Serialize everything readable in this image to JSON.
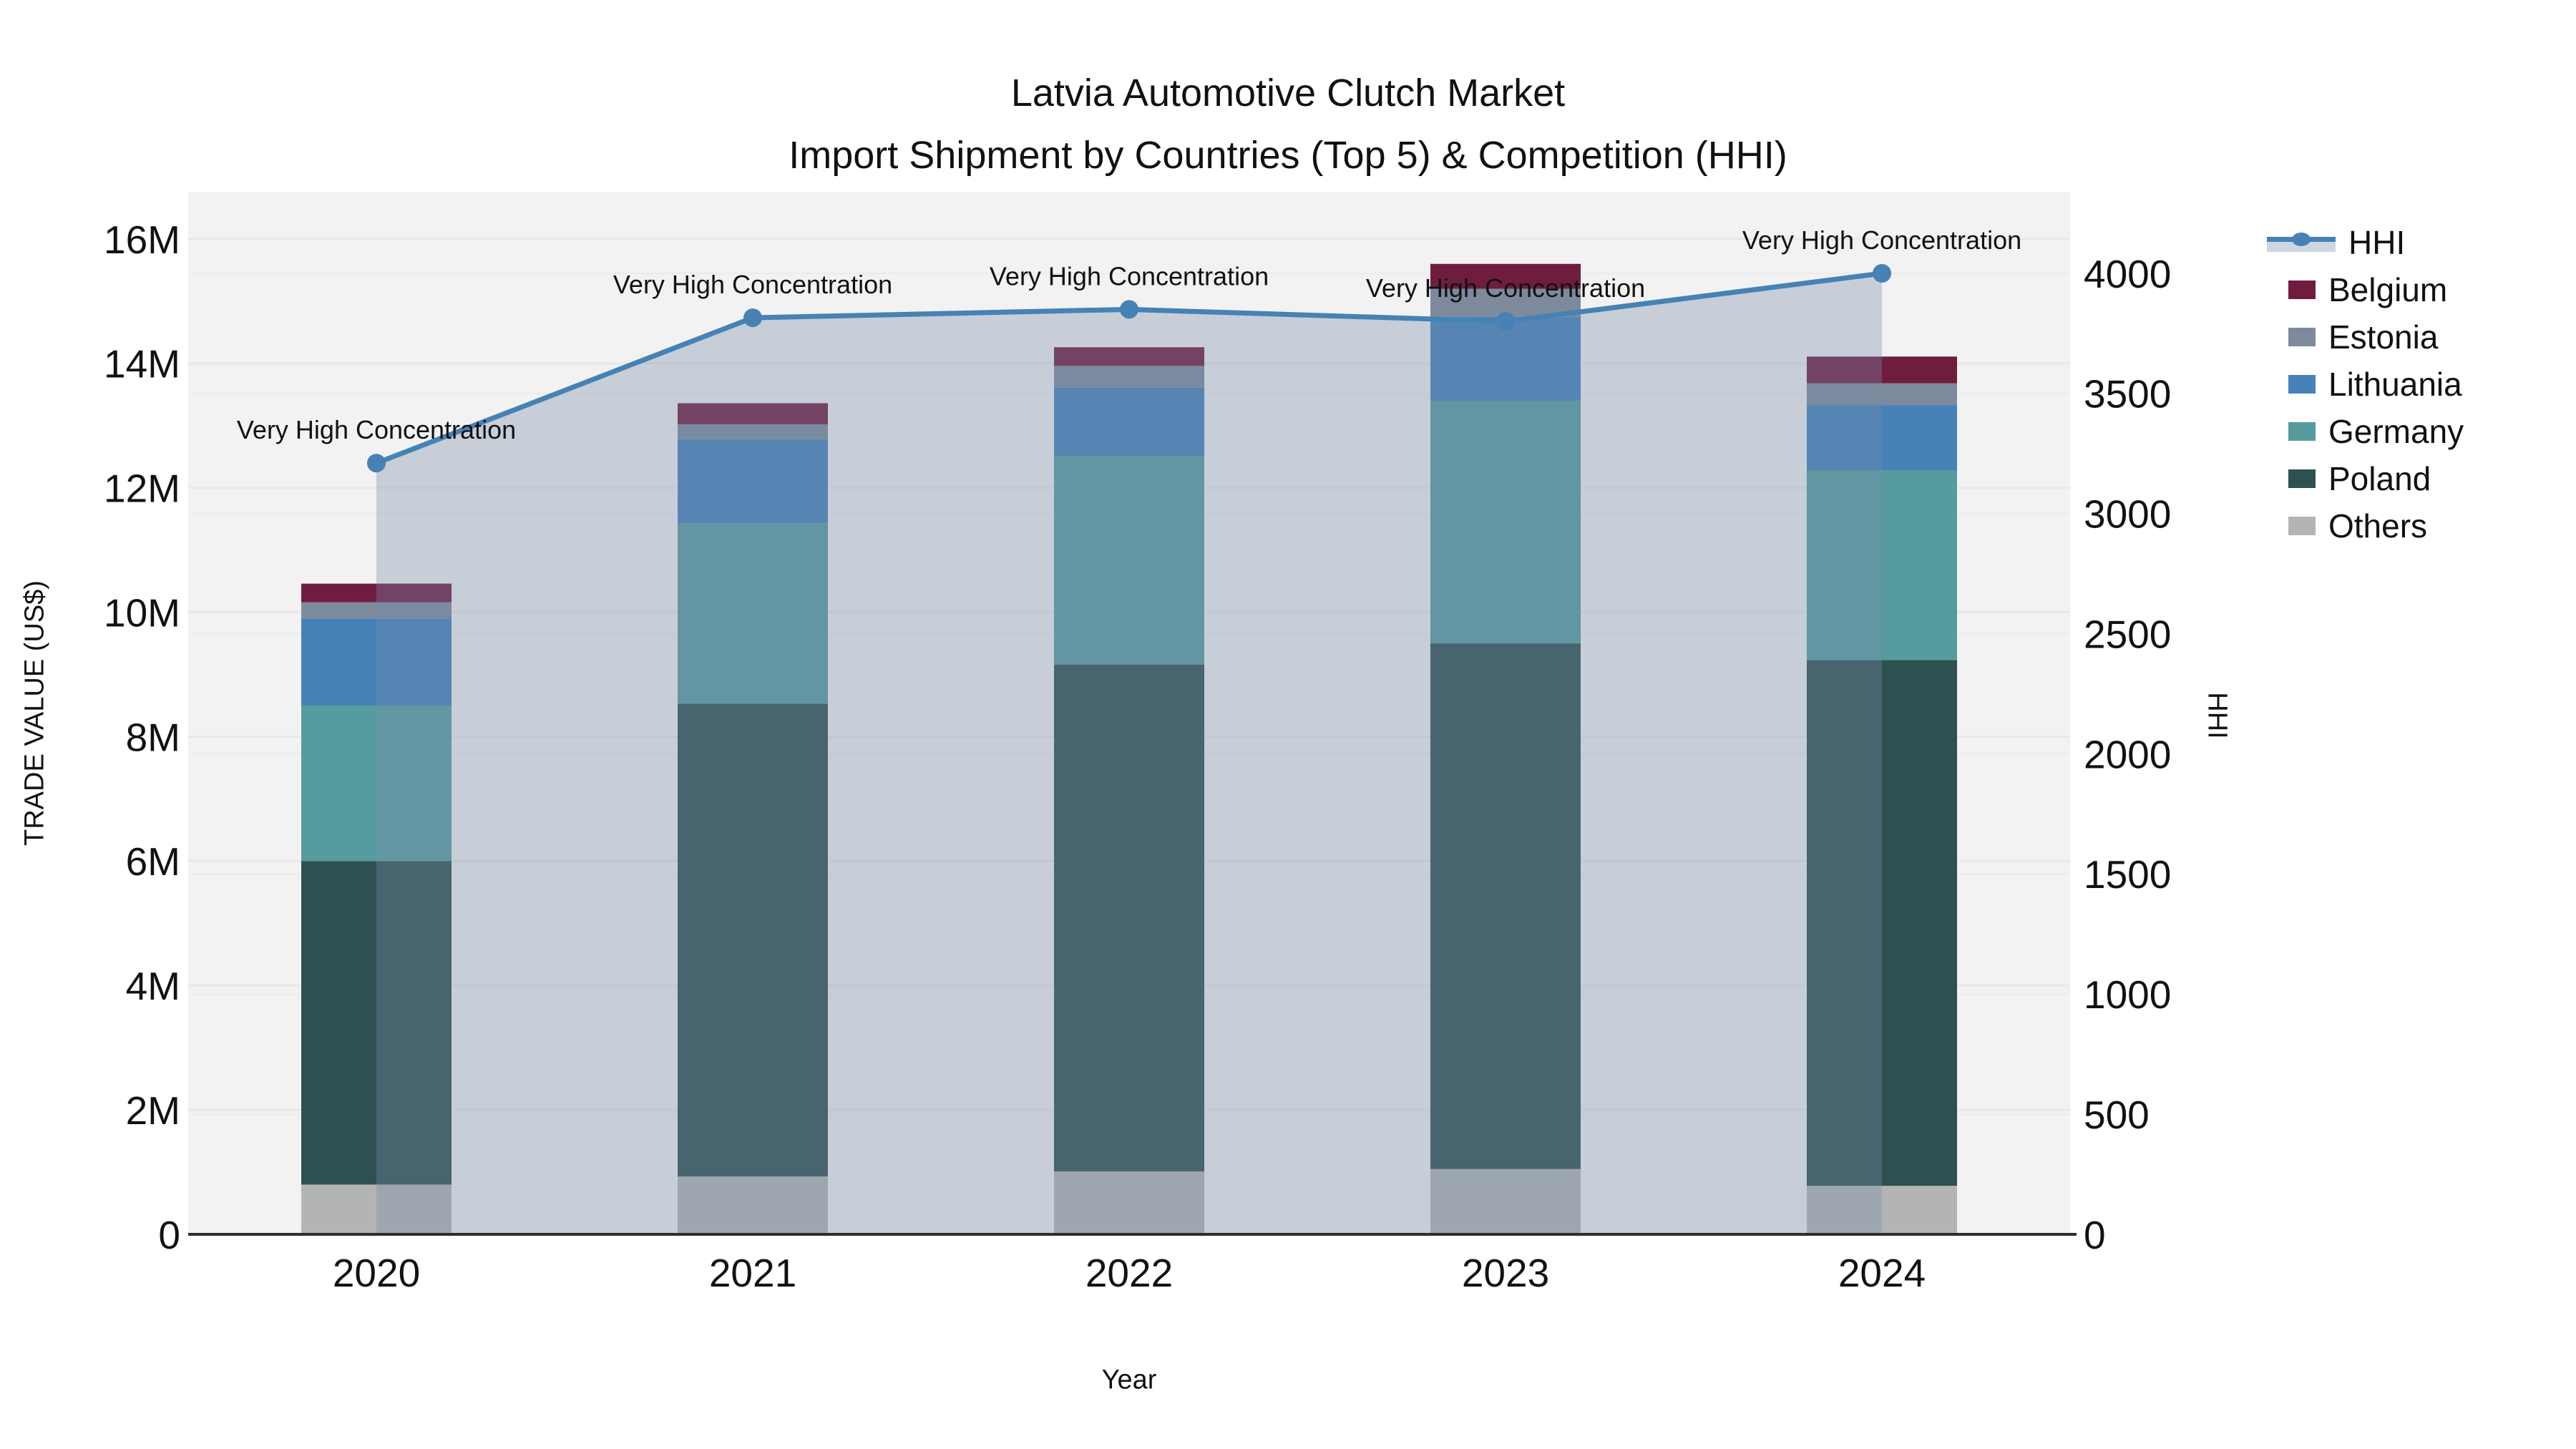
{
  "title": {
    "line1": "Latvia Automotive Clutch Market",
    "line2": "Import Shipment by Countries (Top 5) & Competition (HHI)"
  },
  "chart_data": {
    "type": "stacked-bar+line",
    "title": "Latvia Automotive Clutch Market — Import Shipment by Countries (Top 5) & Competition (HHI)",
    "categories": [
      "2020",
      "2021",
      "2022",
      "2023",
      "2024"
    ],
    "bar_unit": "million US$",
    "series": [
      {
        "name": "Others",
        "color": "#b3b5b4",
        "values": [
          0.8,
          0.93,
          1.01,
          1.05,
          0.78
        ]
      },
      {
        "name": "Poland",
        "color": "#2e5050",
        "values": [
          5.2,
          7.6,
          8.15,
          8.45,
          8.45
        ]
      },
      {
        "name": "Germany",
        "color": "#569b9e",
        "values": [
          2.5,
          2.9,
          3.35,
          3.9,
          3.05
        ]
      },
      {
        "name": "Lithuania",
        "color": "#4681b8",
        "values": [
          1.4,
          1.35,
          1.1,
          1.35,
          1.05
        ]
      },
      {
        "name": "Estonia",
        "color": "#7c8a9c",
        "values": [
          0.26,
          0.24,
          0.35,
          0.45,
          0.35
        ]
      },
      {
        "name": "Belgium",
        "color": "#6f1d3f",
        "values": [
          0.3,
          0.34,
          0.3,
          0.4,
          0.43
        ]
      }
    ],
    "bar_totals": [
      10.46,
      13.36,
      14.26,
      15.6,
      14.11
    ],
    "line_series": {
      "name": "HHI",
      "color": "#4682b4",
      "area_fill": "rgba(119,139,170,0.35)",
      "values": [
        3210,
        3815,
        3850,
        3800,
        4000
      ]
    },
    "annotations": [
      "Very High Concentration",
      "Very High Concentration",
      "Very High Concentration",
      "Very High Concentration",
      "Very High Concentration"
    ],
    "x_axis": {
      "label": "Year",
      "tick_labels": [
        "2020",
        "2021",
        "2022",
        "2023",
        "2024"
      ]
    },
    "left_axis": {
      "label": "TRADE VALUE (US$)",
      "tick_labels": [
        "0",
        "2M",
        "4M",
        "6M",
        "8M",
        "10M",
        "12M",
        "14M",
        "16M"
      ],
      "range_millions": [
        0,
        16
      ]
    },
    "right_axis": {
      "label": "HHI",
      "tick_labels": [
        "0",
        "500",
        "1000",
        "1500",
        "2000",
        "2500",
        "3000",
        "3500",
        "4000"
      ],
      "range": [
        0,
        4000
      ]
    },
    "legend": {
      "position": "right",
      "entries": [
        {
          "label": "HHI",
          "type": "line",
          "color": "#4682b4"
        },
        {
          "label": "Belgium",
          "type": "swatch",
          "color": "#6f1d3f"
        },
        {
          "label": "Estonia",
          "type": "swatch",
          "color": "#7c8a9c"
        },
        {
          "label": "Lithuania",
          "type": "swatch",
          "color": "#4681b8"
        },
        {
          "label": "Germany",
          "type": "swatch",
          "color": "#569b9e"
        },
        {
          "label": "Poland",
          "type": "swatch",
          "color": "#2e5050"
        },
        {
          "label": "Others",
          "type": "swatch",
          "color": "#b3b5b4"
        }
      ]
    },
    "grid": true,
    "plot_background": "#f2f2f2"
  }
}
